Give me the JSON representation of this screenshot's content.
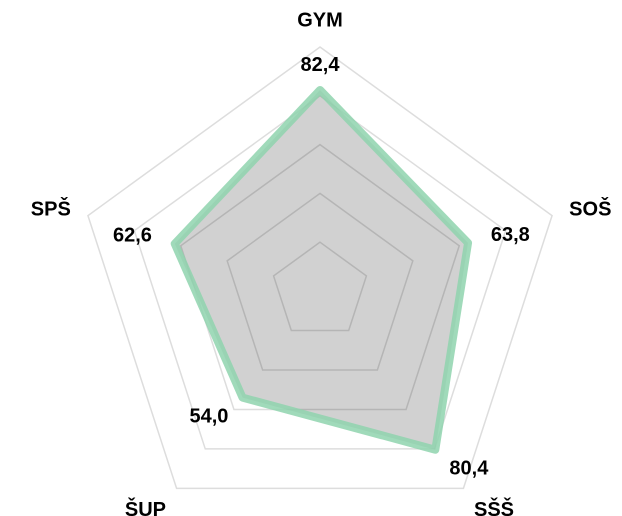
{
  "chart_data": {
    "type": "radar",
    "categories": [
      "GYM",
      "SOŠ",
      "SŠŠ",
      "ŠUP",
      "SPŠ"
    ],
    "series": [
      {
        "color": "#8fd3ae",
        "values": [
          82.4,
          63.8,
          80.4,
          54.0,
          62.6
        ],
        "value_labels": [
          "82,4",
          "63,8",
          "80,4",
          "54,0",
          "62,6"
        ]
      }
    ],
    "rlim": [
      0,
      100
    ],
    "rticks": [
      20,
      40,
      60,
      80,
      100
    ],
    "grid": true
  }
}
